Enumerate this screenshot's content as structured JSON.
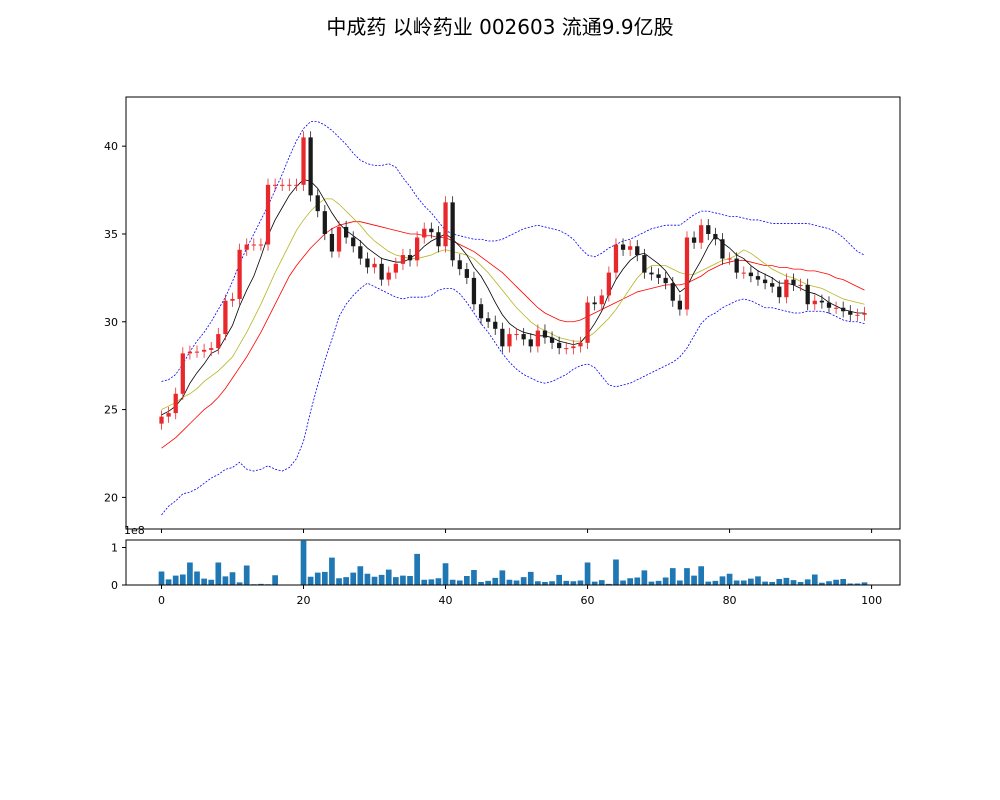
{
  "title": "中成药 以岭药业 002603 流通9.9亿股",
  "chart_data": {
    "type": "candlestick",
    "x_range": [
      -5,
      104
    ],
    "price_axis": {
      "ylim": [
        18.2,
        42.8
      ],
      "ticks": [
        20,
        25,
        30,
        35,
        40
      ]
    },
    "volume_axis": {
      "ylim": [
        0,
        1.2
      ],
      "ticks": [
        0,
        1
      ],
      "offset_label": "1e8"
    },
    "x_ticks": [
      0,
      20,
      40,
      60,
      80,
      100
    ],
    "colors": {
      "up": "#e8282b",
      "down": "#1a1a1a",
      "ma5": "#000000",
      "ma10": "#b5b520",
      "ma20": "#ff0000",
      "boll": "#0000ff",
      "volume": "#1f77b4"
    },
    "close": [
      24.6,
      24.8,
      25.9,
      28.2,
      28.3,
      28.3,
      28.4,
      28.5,
      29.3,
      31.2,
      31.3,
      34.1,
      34.4,
      34.4,
      34.4,
      37.8,
      37.8,
      37.8,
      37.8,
      37.8,
      40.5,
      37.2,
      36.3,
      35.0,
      34.0,
      35.4,
      34.8,
      34.3,
      33.6,
      33.1,
      33.3,
      32.4,
      32.8,
      33.3,
      33.8,
      33.5,
      34.8,
      35.3,
      35.1,
      34.3,
      36.8,
      33.5,
      33.0,
      32.5,
      31.0,
      30.2,
      30.0,
      29.6,
      28.6,
      29.3,
      29.3,
      29.0,
      28.6,
      29.5,
      29.1,
      28.8,
      28.5,
      28.5,
      28.6,
      28.8,
      31.1,
      31.0,
      31.5,
      32.8,
      34.4,
      34.1,
      34.3,
      33.8,
      32.8,
      32.7,
      32.5,
      32.2,
      31.2,
      30.7,
      34.8,
      34.5,
      35.5,
      35.0,
      34.7,
      33.6,
      33.6,
      32.8,
      32.8,
      32.6,
      32.4,
      32.2,
      32.0,
      31.4,
      32.4,
      32.1,
      32.1,
      31.0,
      31.2,
      31.1,
      30.8,
      30.8,
      30.6,
      30.4,
      30.4,
      30.5
    ],
    "ma5": [
      24.7,
      24.9,
      25.2,
      25.7,
      26.5,
      27.1,
      27.6,
      28.2,
      28.4,
      29.1,
      29.8,
      30.9,
      31.8,
      32.6,
      33.7,
      34.9,
      35.8,
      36.5,
      37.2,
      37.7,
      38.1,
      38.0,
      37.6,
      36.9,
      36.2,
      35.6,
      35.2,
      34.9,
      34.6,
      34.2,
      33.9,
      33.6,
      33.5,
      33.4,
      33.4,
      33.6,
      33.9,
      34.3,
      34.6,
      34.8,
      35.0,
      34.7,
      34.3,
      33.8,
      33.1,
      32.6,
      31.9,
      31.1,
      30.4,
      29.9,
      29.6,
      29.4,
      29.3,
      29.2,
      29.2,
      29.1,
      28.9,
      28.8,
      28.7,
      28.8,
      29.3,
      29.9,
      30.6,
      31.6,
      32.4,
      33.0,
      33.5,
      33.8,
      33.9,
      33.6,
      33.3,
      32.9,
      32.3,
      31.7,
      32.0,
      32.8,
      33.5,
      34.3,
      34.9,
      34.5,
      34.2,
      33.8,
      33.6,
      33.2,
      32.9,
      32.7,
      32.5,
      32.2,
      32.2,
      32.1,
      31.9,
      31.7,
      31.6,
      31.4,
      31.1,
      30.9,
      30.7,
      30.6,
      30.5,
      30.5
    ],
    "ma10": [
      25.0,
      25.2,
      25.4,
      25.7,
      25.9,
      26.2,
      26.6,
      26.9,
      27.2,
      27.6,
      28.0,
      28.7,
      29.4,
      30.2,
      31.0,
      31.9,
      32.8,
      33.6,
      34.4,
      35.2,
      35.8,
      36.3,
      36.7,
      37.0,
      37.0,
      36.7,
      36.3,
      35.9,
      35.5,
      35.0,
      34.6,
      34.3,
      34.0,
      33.8,
      33.7,
      33.6,
      33.6,
      33.7,
      33.8,
      34.0,
      34.1,
      34.0,
      33.9,
      33.8,
      33.6,
      33.2,
      32.8,
      32.3,
      31.8,
      31.3,
      30.8,
      30.4,
      30.0,
      29.7,
      29.5,
      29.3,
      29.1,
      29.0,
      28.9,
      28.9,
      29.1,
      29.4,
      29.8,
      30.2,
      30.7,
      31.3,
      31.9,
      32.5,
      32.9,
      33.2,
      33.2,
      33.2,
      33.0,
      32.8,
      32.7,
      32.7,
      32.9,
      33.1,
      33.3,
      33.5,
      33.6,
      33.8,
      34.1,
      33.9,
      33.6,
      33.3,
      33.0,
      32.8,
      32.6,
      32.5,
      32.3,
      32.1,
      32.0,
      31.9,
      31.7,
      31.5,
      31.3,
      31.2,
      31.1,
      31.0
    ],
    "ma20": [
      22.8,
      23.1,
      23.4,
      23.8,
      24.2,
      24.6,
      25.0,
      25.3,
      25.7,
      26.2,
      26.8,
      27.4,
      28.0,
      28.7,
      29.4,
      30.2,
      31.0,
      31.8,
      32.6,
      33.2,
      33.7,
      34.2,
      34.6,
      35.0,
      35.3,
      35.5,
      35.6,
      35.7,
      35.7,
      35.6,
      35.5,
      35.4,
      35.3,
      35.2,
      35.1,
      35.0,
      35.0,
      34.9,
      34.9,
      34.8,
      34.8,
      34.6,
      34.4,
      34.2,
      34.0,
      33.7,
      33.4,
      33.1,
      32.8,
      32.4,
      32.0,
      31.6,
      31.2,
      30.8,
      30.5,
      30.3,
      30.1,
      30.0,
      30.0,
      30.1,
      30.3,
      30.5,
      30.7,
      30.9,
      31.1,
      31.3,
      31.5,
      31.7,
      31.8,
      31.9,
      32.0,
      32.1,
      32.1,
      32.1,
      32.2,
      32.4,
      32.6,
      32.9,
      33.1,
      33.3,
      33.4,
      33.5,
      33.5,
      33.4,
      33.3,
      33.2,
      33.2,
      33.1,
      33.1,
      33.0,
      33.0,
      32.9,
      32.9,
      32.8,
      32.7,
      32.5,
      32.4,
      32.2,
      32.0,
      31.8
    ],
    "boll_upper": [
      26.6,
      26.7,
      27.0,
      27.6,
      28.3,
      28.9,
      29.4,
      30.0,
      30.7,
      31.4,
      32.3,
      33.3,
      34.2,
      35.0,
      35.8,
      36.6,
      37.5,
      38.4,
      39.4,
      40.3,
      41.0,
      41.4,
      41.4,
      41.2,
      40.9,
      40.5,
      40.1,
      39.6,
      39.2,
      39.0,
      38.9,
      38.9,
      39.0,
      38.8,
      38.2,
      37.7,
      37.1,
      36.6,
      36.2,
      35.7,
      35.2,
      35.0,
      34.9,
      34.8,
      34.7,
      34.7,
      34.6,
      34.6,
      34.7,
      34.9,
      35.1,
      35.3,
      35.4,
      35.5,
      35.4,
      35.3,
      35.2,
      35.0,
      34.7,
      34.2,
      33.8,
      33.7,
      33.9,
      34.2,
      34.4,
      34.6,
      34.7,
      34.9,
      35.1,
      35.3,
      35.4,
      35.5,
      35.5,
      35.5,
      35.8,
      36.1,
      36.3,
      36.3,
      36.2,
      36.1,
      36.0,
      36.0,
      35.9,
      35.8,
      35.8,
      35.7,
      35.6,
      35.6,
      35.6,
      35.6,
      35.6,
      35.6,
      35.5,
      35.4,
      35.3,
      35.1,
      34.8,
      34.4,
      34.0,
      33.8
    ],
    "boll_lower": [
      19.0,
      19.5,
      19.8,
      20.2,
      20.3,
      20.5,
      20.8,
      21.1,
      21.3,
      21.6,
      21.7,
      22.0,
      21.6,
      21.5,
      21.6,
      21.8,
      21.6,
      21.5,
      21.7,
      22.2,
      23.2,
      24.9,
      26.4,
      27.8,
      29.0,
      30.3,
      31.0,
      31.5,
      31.9,
      32.2,
      32.0,
      31.8,
      31.6,
      31.4,
      31.3,
      31.4,
      31.4,
      31.4,
      31.5,
      31.8,
      31.9,
      31.9,
      31.6,
      31.1,
      30.5,
      29.9,
      29.4,
      28.8,
      28.2,
      27.7,
      27.3,
      27.0,
      26.8,
      26.6,
      26.5,
      26.6,
      26.8,
      27.0,
      27.3,
      27.5,
      27.6,
      27.4,
      26.9,
      26.4,
      26.3,
      26.4,
      26.5,
      26.7,
      26.9,
      27.1,
      27.3,
      27.5,
      27.7,
      28.0,
      28.5,
      29.2,
      29.9,
      30.3,
      30.5,
      30.8,
      31.0,
      31.2,
      31.3,
      31.2,
      31.0,
      30.8,
      30.8,
      30.7,
      30.6,
      30.5,
      30.5,
      30.6,
      30.6,
      30.6,
      30.5,
      30.3,
      30.1,
      30.0,
      30.0,
      29.9
    ],
    "volume": [
      0.36,
      0.15,
      0.25,
      0.28,
      0.6,
      0.36,
      0.17,
      0.14,
      0.6,
      0.23,
      0.34,
      0.07,
      0.52,
      0.02,
      0.03,
      0.02,
      0.26,
      0.0,
      0.0,
      0.0,
      1.18,
      0.22,
      0.33,
      0.35,
      0.73,
      0.18,
      0.21,
      0.33,
      0.5,
      0.3,
      0.22,
      0.27,
      0.41,
      0.21,
      0.25,
      0.24,
      0.83,
      0.14,
      0.15,
      0.18,
      0.58,
      0.14,
      0.12,
      0.24,
      0.4,
      0.08,
      0.11,
      0.19,
      0.39,
      0.14,
      0.12,
      0.21,
      0.35,
      0.1,
      0.08,
      0.1,
      0.27,
      0.11,
      0.1,
      0.12,
      0.6,
      0.09,
      0.13,
      0.03,
      0.68,
      0.12,
      0.18,
      0.2,
      0.39,
      0.09,
      0.11,
      0.2,
      0.45,
      0.12,
      0.45,
      0.25,
      0.5,
      0.09,
      0.11,
      0.23,
      0.3,
      0.12,
      0.12,
      0.17,
      0.23,
      0.09,
      0.08,
      0.16,
      0.19,
      0.13,
      0.08,
      0.15,
      0.28,
      0.06,
      0.1,
      0.14,
      0.16,
      0.04,
      0.04,
      0.07
    ]
  }
}
